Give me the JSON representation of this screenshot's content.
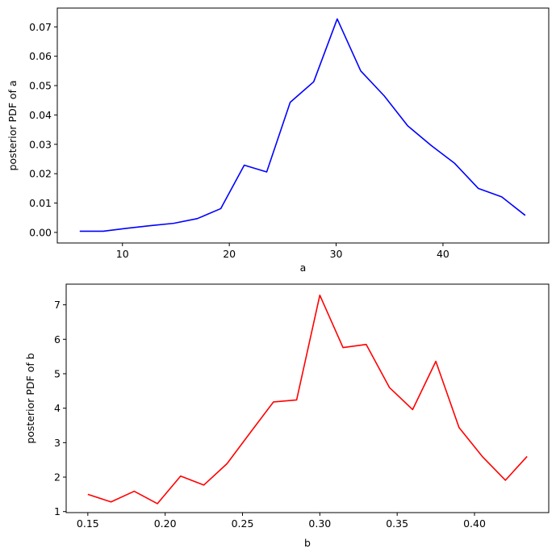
{
  "chart_data": [
    {
      "type": "line",
      "title": "",
      "xlabel": "a",
      "ylabel": "posterior PDF of a",
      "xlim": [
        3.9,
        49.9
      ],
      "ylim": [
        -0.0036,
        0.0764
      ],
      "xticks": [
        10,
        20,
        30,
        40
      ],
      "xtick_labels": [
        "10",
        "20",
        "30",
        "40"
      ],
      "yticks": [
        0.0,
        0.01,
        0.02,
        0.03,
        0.04,
        0.05,
        0.06,
        0.07
      ],
      "ytick_labels": [
        "0.00",
        "0.01",
        "0.02",
        "0.03",
        "0.04",
        "0.05",
        "0.06",
        "0.07"
      ],
      "color": "#0000ff",
      "grid": false,
      "series": [
        {
          "x": [
            6.0,
            8.2,
            10.4,
            12.6,
            14.8,
            17.0,
            19.2,
            21.4,
            23.5,
            25.7,
            27.9,
            30.1,
            32.3,
            34.5,
            36.7,
            38.9,
            41.1,
            43.3,
            45.5,
            47.7
          ],
          "values": [
            0.0004,
            0.0004,
            0.0014,
            0.0023,
            0.0031,
            0.0047,
            0.0081,
            0.0229,
            0.0206,
            0.0443,
            0.0513,
            0.0727,
            0.055,
            0.0465,
            0.0363,
            0.0296,
            0.0235,
            0.015,
            0.0121,
            0.0058
          ]
        }
      ]
    },
    {
      "type": "line",
      "title": "",
      "xlabel": "b",
      "ylabel": "posterior PDF of b",
      "xlim": [
        0.136,
        0.448
      ],
      "ylim": [
        0.97,
        7.6
      ],
      "xticks": [
        0.15,
        0.2,
        0.25,
        0.3,
        0.35,
        0.4
      ],
      "xtick_labels": [
        "0.15",
        "0.20",
        "0.25",
        "0.30",
        "0.35",
        "0.40"
      ],
      "yticks": [
        1,
        2,
        3,
        4,
        5,
        6,
        7
      ],
      "ytick_labels": [
        "1",
        "2",
        "3",
        "4",
        "5",
        "6",
        "7"
      ],
      "color": "#ff0000",
      "grid": false,
      "series": [
        {
          "x": [
            0.15,
            0.165,
            0.18,
            0.195,
            0.21,
            0.225,
            0.24,
            0.255,
            0.27,
            0.285,
            0.3,
            0.315,
            0.33,
            0.345,
            0.36,
            0.375,
            0.39,
            0.405,
            0.42,
            0.434
          ],
          "values": [
            1.5,
            1.28,
            1.59,
            1.23,
            2.03,
            1.77,
            2.39,
            3.29,
            4.18,
            4.24,
            7.28,
            5.76,
            5.85,
            4.6,
            3.96,
            5.36,
            3.44,
            2.6,
            1.91,
            2.6
          ]
        }
      ]
    }
  ]
}
